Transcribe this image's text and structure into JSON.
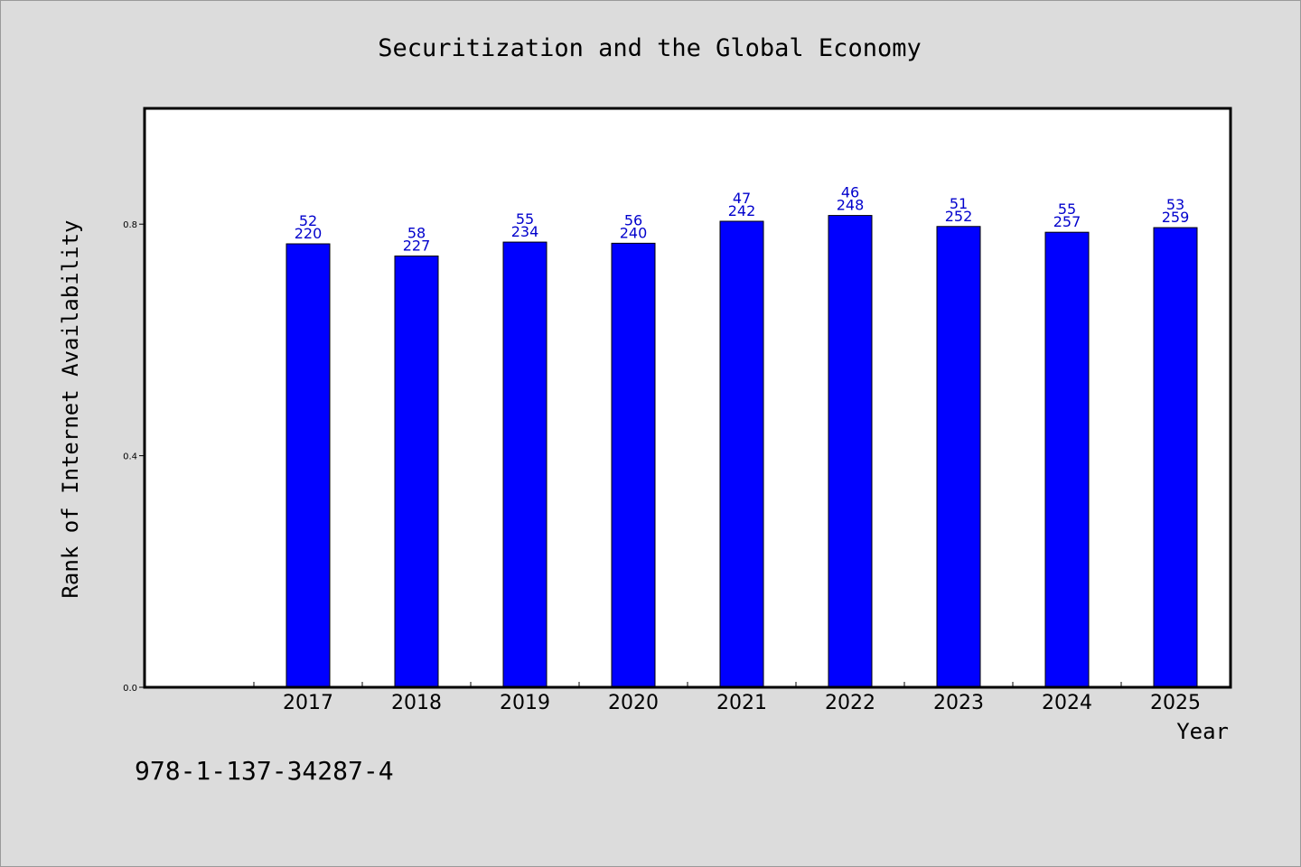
{
  "footer_text": "978-1-137-34287-4",
  "colors": {
    "bar": "#0000ff",
    "label": "#0000cc",
    "background": "#dcdcdc",
    "plot_bg": "#ffffff"
  },
  "chart_data": {
    "type": "bar",
    "title": "Securitization and the Global Economy",
    "xlabel": "Year",
    "ylabel": "Rank of Internet Availability",
    "categories": [
      "2017",
      "2018",
      "2019",
      "2020",
      "2021",
      "2022",
      "2023",
      "2024",
      "2025"
    ],
    "values": [
      0.766,
      0.745,
      0.769,
      0.767,
      0.805,
      0.815,
      0.796,
      0.786,
      0.794
    ],
    "label_top": [
      "52",
      "58",
      "55",
      "56",
      "47",
      "46",
      "51",
      "55",
      "53"
    ],
    "label_bottom": [
      "220",
      "227",
      "234",
      "240",
      "242",
      "248",
      "252",
      "257",
      "259"
    ],
    "yticks": [
      "0.0",
      "0.4",
      "0.8"
    ],
    "ylim": [
      0,
      1.0
    ],
    "grid": false,
    "legend": "none"
  }
}
